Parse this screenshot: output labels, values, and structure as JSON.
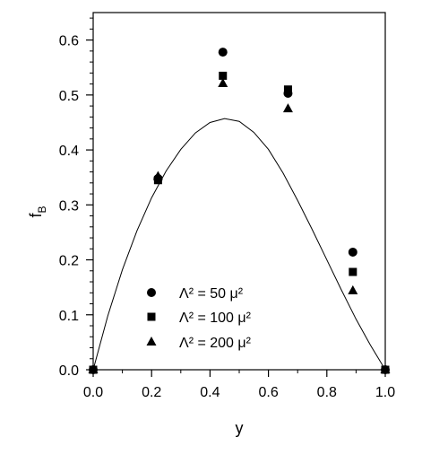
{
  "chart_data": {
    "type": "scatter",
    "xlabel": "y",
    "ylabel_main": "f",
    "ylabel_sub": "B",
    "xlim": [
      0,
      1.0
    ],
    "ylim": [
      0,
      0.65
    ],
    "x_ticks": [
      {
        "value": 0.0,
        "label": "0.0"
      },
      {
        "value": 0.2,
        "label": "0.2"
      },
      {
        "value": 0.4,
        "label": "0.4"
      },
      {
        "value": 0.6,
        "label": "0.6"
      },
      {
        "value": 0.8,
        "label": "0.8"
      },
      {
        "value": 1.0,
        "label": "1.0"
      }
    ],
    "y_ticks": [
      {
        "value": 0.0,
        "label": "0.0"
      },
      {
        "value": 0.1,
        "label": "0.1"
      },
      {
        "value": 0.2,
        "label": "0.2"
      },
      {
        "value": 0.3,
        "label": "0.3"
      },
      {
        "value": 0.4,
        "label": "0.4"
      },
      {
        "value": 0.5,
        "label": "0.5"
      },
      {
        "value": 0.6,
        "label": "0.6"
      }
    ],
    "grid": false,
    "legend_position": "lower-left",
    "series": [
      {
        "label": "Λ² = 50 μ²",
        "marker": "circle",
        "points": [
          {
            "x": 0.0,
            "y": 0.0
          },
          {
            "x": 0.222,
            "y": 0.348
          },
          {
            "x": 0.444,
            "y": 0.578
          },
          {
            "x": 0.667,
            "y": 0.503
          },
          {
            "x": 0.889,
            "y": 0.214
          },
          {
            "x": 1.0,
            "y": 0.0
          }
        ]
      },
      {
        "label": "Λ² = 100 μ²",
        "marker": "square",
        "points": [
          {
            "x": 0.0,
            "y": 0.0
          },
          {
            "x": 0.222,
            "y": 0.345
          },
          {
            "x": 0.444,
            "y": 0.535
          },
          {
            "x": 0.667,
            "y": 0.51
          },
          {
            "x": 0.889,
            "y": 0.178
          },
          {
            "x": 1.0,
            "y": 0.0
          }
        ]
      },
      {
        "label": "Λ² = 200 μ²",
        "marker": "triangle",
        "points": [
          {
            "x": 0.0,
            "y": 0.0
          },
          {
            "x": 0.222,
            "y": 0.352
          },
          {
            "x": 0.444,
            "y": 0.521
          },
          {
            "x": 0.667,
            "y": 0.475
          },
          {
            "x": 0.889,
            "y": 0.144
          },
          {
            "x": 1.0,
            "y": 0.0
          }
        ]
      }
    ],
    "curve": {
      "kind": "line",
      "points": [
        {
          "x": 0.0,
          "y": 0.0
        },
        {
          "x": 0.05,
          "y": 0.098
        },
        {
          "x": 0.1,
          "y": 0.182
        },
        {
          "x": 0.15,
          "y": 0.253
        },
        {
          "x": 0.2,
          "y": 0.313
        },
        {
          "x": 0.25,
          "y": 0.362
        },
        {
          "x": 0.3,
          "y": 0.401
        },
        {
          "x": 0.35,
          "y": 0.431
        },
        {
          "x": 0.4,
          "y": 0.45
        },
        {
          "x": 0.45,
          "y": 0.457
        },
        {
          "x": 0.5,
          "y": 0.452
        },
        {
          "x": 0.55,
          "y": 0.432
        },
        {
          "x": 0.6,
          "y": 0.401
        },
        {
          "x": 0.65,
          "y": 0.358
        },
        {
          "x": 0.7,
          "y": 0.308
        },
        {
          "x": 0.75,
          "y": 0.255
        },
        {
          "x": 0.8,
          "y": 0.2
        },
        {
          "x": 0.85,
          "y": 0.145
        },
        {
          "x": 0.9,
          "y": 0.092
        },
        {
          "x": 0.95,
          "y": 0.044
        },
        {
          "x": 1.0,
          "y": 0.0
        }
      ]
    }
  }
}
